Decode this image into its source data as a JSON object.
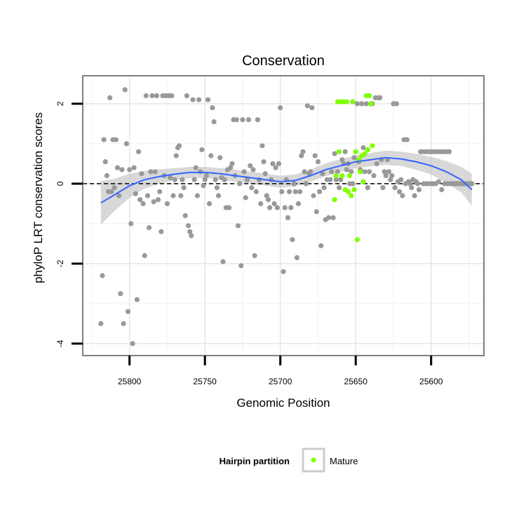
{
  "chart_data": {
    "type": "scatter",
    "title": "Conservation",
    "xlabel": "Genomic Position",
    "ylabel": "phyloP LRT conservation scores",
    "x_reversed": true,
    "xlim": [
      25831,
      25565
    ],
    "ylim": [
      -4.3,
      2.7
    ],
    "x_ticks": [
      25800,
      25750,
      25700,
      25650,
      25600
    ],
    "y_ticks": [
      2,
      0,
      -2,
      -4
    ],
    "grid": true,
    "reference_line": {
      "y": 0,
      "style": "dashed"
    },
    "colors": {
      "other": "#999999",
      "mature": "#7fff00",
      "smooth": "#3366ff",
      "ribbon": "#bebebe",
      "panel_border": "#7f7f7f"
    },
    "legend": {
      "title": "Hairpin partition",
      "entries": [
        "Mature"
      ],
      "placement": "bottom"
    },
    "series": [
      {
        "points": [
          [
            25819,
            -3.5
          ],
          [
            25818,
            -2.3
          ],
          [
            25817,
            1.1
          ],
          [
            25816,
            0.55
          ],
          [
            25815,
            0.2
          ],
          [
            25814,
            -0.2
          ],
          [
            25813,
            2.15
          ],
          [
            25812,
            -0.2
          ],
          [
            25811,
            1.1
          ],
          [
            25810,
            -0.1
          ],
          [
            25809,
            1.1
          ],
          [
            25808,
            0.4
          ],
          [
            25807,
            -0.3
          ],
          [
            25806,
            -2.75
          ],
          [
            25805,
            0.35
          ],
          [
            25804,
            -3.5
          ],
          [
            25803,
            2.35
          ],
          [
            25802,
            1.0
          ],
          [
            25801,
            -3.2
          ],
          [
            25800,
            0.35
          ],
          [
            25799,
            -1.0
          ],
          [
            25798,
            -4.0
          ],
          [
            25797,
            0.4
          ],
          [
            25796,
            -0.25
          ],
          [
            25795,
            -2.9
          ],
          [
            25794,
            0.8
          ],
          [
            25793,
            -0.4
          ],
          [
            25792,
            0.25
          ],
          [
            25791,
            -0.5
          ],
          [
            25790,
            -1.8
          ],
          [
            25789,
            2.2
          ],
          [
            25788,
            -0.3
          ],
          [
            25787,
            -1.1
          ],
          [
            25786,
            0.3
          ],
          [
            25785,
            2.2
          ],
          [
            25784,
            -0.45
          ],
          [
            25783,
            0.3
          ],
          [
            25782,
            2.2
          ],
          [
            25781,
            -0.4
          ],
          [
            25780,
            -0.2
          ],
          [
            25779,
            -1.2
          ],
          [
            25778,
            2.2
          ],
          [
            25777,
            0.2
          ],
          [
            25776,
            2.2
          ],
          [
            25775,
            -0.5
          ],
          [
            25774,
            2.2
          ],
          [
            25773,
            0.15
          ],
          [
            25772,
            2.2
          ],
          [
            25771,
            -0.3
          ],
          [
            25770,
            0.1
          ],
          [
            25769,
            0.7
          ],
          [
            25768,
            0.9
          ],
          [
            25767,
            0.95
          ],
          [
            25766,
            -0.3
          ],
          [
            25765,
            0.1
          ],
          [
            25764,
            -0.1
          ],
          [
            25763,
            -0.8
          ],
          [
            25762,
            2.2
          ],
          [
            25761,
            -1.05
          ],
          [
            25760,
            -1.2
          ],
          [
            25759,
            -1.3
          ],
          [
            25758,
            2.1
          ],
          [
            25757,
            0.1
          ],
          [
            25756,
            0.4
          ],
          [
            25755,
            -0.3
          ],
          [
            25754,
            2.1
          ],
          [
            25753,
            0.3
          ],
          [
            25752,
            0.85
          ],
          [
            25751,
            -0.05
          ],
          [
            25750,
            0.1
          ],
          [
            25749,
            0.2
          ],
          [
            25748,
            2.1
          ],
          [
            25747,
            -0.5
          ],
          [
            25746,
            0.7
          ],
          [
            25745,
            1.9
          ],
          [
            25744,
            1.55
          ],
          [
            25743,
            0.1
          ],
          [
            25742,
            -0.1
          ],
          [
            25741,
            -0.3
          ],
          [
            25740,
            0.65
          ],
          [
            25739,
            0.15
          ],
          [
            25738,
            -1.95
          ],
          [
            25737,
            0.1
          ],
          [
            25736,
            -0.6
          ],
          [
            25735,
            0.35
          ],
          [
            25734,
            -0.6
          ],
          [
            25733,
            0.4
          ],
          [
            25732,
            0.5
          ],
          [
            25731,
            1.6
          ],
          [
            25730,
            0.2
          ],
          [
            25729,
            1.6
          ],
          [
            25728,
            -1.05
          ],
          [
            25727,
            0.0
          ],
          [
            25726,
            -2.05
          ],
          [
            25725,
            1.6
          ],
          [
            25724,
            0.3
          ],
          [
            25723,
            -0.35
          ],
          [
            25722,
            0.1
          ],
          [
            25721,
            1.6
          ],
          [
            25720,
            0.45
          ],
          [
            25719,
            -0.1
          ],
          [
            25718,
            0.35
          ],
          [
            25717,
            -1.8
          ],
          [
            25716,
            -0.2
          ],
          [
            25715,
            1.6
          ],
          [
            25714,
            0.1
          ],
          [
            25713,
            -0.5
          ],
          [
            25712,
            0.95
          ],
          [
            25711,
            0.55
          ],
          [
            25710,
            0.25
          ],
          [
            25709,
            -0.3
          ],
          [
            25708,
            -0.4
          ],
          [
            25707,
            -0.6
          ],
          [
            25706,
            0.1
          ],
          [
            25705,
            0.5
          ],
          [
            25704,
            -0.5
          ],
          [
            25703,
            0.4
          ],
          [
            25702,
            -0.6
          ],
          [
            25701,
            0.5
          ],
          [
            25700,
            1.9
          ],
          [
            25699,
            -0.2
          ],
          [
            25698,
            -2.2
          ],
          [
            25697,
            -0.6
          ],
          [
            25696,
            0.1
          ],
          [
            25695,
            -0.85
          ],
          [
            25694,
            -0.2
          ],
          [
            25693,
            -0.6
          ],
          [
            25692,
            -1.4
          ],
          [
            25691,
            0.0
          ],
          [
            25690,
            -0.2
          ],
          [
            25689,
            -1.85
          ],
          [
            25688,
            -0.5
          ],
          [
            25687,
            -0.2
          ],
          [
            25686,
            0.7
          ],
          [
            25685,
            0.8
          ],
          [
            25684,
            0.3
          ],
          [
            25683,
            0.0
          ],
          [
            25682,
            1.95
          ],
          [
            25681,
            0.25
          ],
          [
            25680,
            0.3
          ],
          [
            25679,
            1.9
          ],
          [
            25678,
            -0.3
          ],
          [
            25677,
            0.7
          ],
          [
            25676,
            -0.7
          ],
          [
            25675,
            0.55
          ],
          [
            25674,
            -0.2
          ],
          [
            25673,
            -1.55
          ],
          [
            25672,
            0.25
          ],
          [
            25671,
            -0.1
          ],
          [
            25670,
            -0.9
          ],
          [
            25669,
            0.1
          ],
          [
            25668,
            -0.85
          ],
          [
            25667,
            0.1
          ],
          [
            25666,
            0.3
          ],
          [
            25665,
            -0.85
          ],
          [
            25664,
            0.75
          ],
          [
            25663,
            0.1
          ],
          [
            25662,
            0.3
          ],
          [
            25661,
            -0.1
          ],
          [
            25660,
            0.1
          ],
          [
            25659,
            0.6
          ],
          [
            25658,
            0.5
          ],
          [
            25657,
            0.8
          ],
          [
            25656,
            0.35
          ],
          [
            25655,
            0.5
          ],
          [
            25654,
            0.0
          ],
          [
            25653,
            0.3
          ],
          [
            25652,
            0.0
          ],
          [
            25651,
            0.65
          ],
          [
            25650,
            0.8
          ],
          [
            25649,
            2.0
          ],
          [
            25648,
            0.55
          ],
          [
            25647,
            0.35
          ],
          [
            25646,
            2.0
          ],
          [
            25645,
            0.9
          ],
          [
            25644,
            0.3
          ],
          [
            25643,
            2.0
          ],
          [
            25642,
            -0.1
          ],
          [
            25641,
            0.3
          ],
          [
            25640,
            2.0
          ],
          [
            25639,
            2.0
          ],
          [
            25638,
            0.2
          ],
          [
            25637,
            2.15
          ],
          [
            25636,
            0.5
          ],
          [
            25635,
            2.15
          ],
          [
            25634,
            2.15
          ],
          [
            25633,
            0.6
          ],
          [
            25632,
            -0.1
          ],
          [
            25631,
            0.3
          ],
          [
            25630,
            0.2
          ],
          [
            25629,
            0.6
          ],
          [
            25628,
            0.3
          ],
          [
            25627,
            0.1
          ],
          [
            25626,
            0.2
          ],
          [
            25625,
            2.0
          ],
          [
            25624,
            -0.1
          ],
          [
            25623,
            2.0
          ],
          [
            25622,
            0.05
          ],
          [
            25621,
            -0.2
          ],
          [
            25620,
            0.1
          ],
          [
            25619,
            -0.3
          ],
          [
            25618,
            1.1
          ],
          [
            25617,
            0.0
          ],
          [
            25616,
            1.1
          ],
          [
            25615,
            0.05
          ],
          [
            25614,
            0.0
          ],
          [
            25613,
            -0.1
          ],
          [
            25612,
            0.1
          ],
          [
            25611,
            -0.3
          ],
          [
            25610,
            0.05
          ],
          [
            25609,
            0.0
          ],
          [
            25608,
            -0.15
          ],
          [
            25607,
            0.8
          ],
          [
            25606,
            0.8
          ],
          [
            25605,
            0.0
          ],
          [
            25604,
            0.8
          ],
          [
            25603,
            0.0
          ],
          [
            25602,
            0.8
          ],
          [
            25601,
            0.0
          ],
          [
            25600,
            0.8
          ],
          [
            25599,
            0.0
          ],
          [
            25598,
            0.8
          ],
          [
            25597,
            0.0
          ],
          [
            25596,
            0.8
          ],
          [
            25595,
            0.05
          ],
          [
            25594,
            0.8
          ],
          [
            25593,
            -0.15
          ],
          [
            25592,
            0.8
          ],
          [
            25591,
            0.0
          ],
          [
            25590,
            0.8
          ],
          [
            25589,
            0.0
          ],
          [
            25588,
            0.8
          ],
          [
            25587,
            0.0
          ],
          [
            25586,
            0.0
          ],
          [
            25585,
            0.0
          ],
          [
            25584,
            0.0
          ],
          [
            25583,
            0.0
          ],
          [
            25582,
            0.0
          ],
          [
            25581,
            0.0
          ],
          [
            25580,
            0.0
          ],
          [
            25579,
            0.0
          ],
          [
            25578,
            0.0
          ],
          [
            25577,
            0.0
          ],
          [
            25576,
            0.0
          ],
          [
            25575,
            0.0
          ],
          [
            25574,
            0.0
          ],
          [
            25573,
            0.0
          ]
        ]
      },
      {
        "name": "Mature",
        "points": [
          [
            25664,
            -0.4
          ],
          [
            25663,
            0.2
          ],
          [
            25662,
            2.05
          ],
          [
            25661,
            0.8
          ],
          [
            25660,
            2.05
          ],
          [
            25659,
            0.2
          ],
          [
            25658,
            2.05
          ],
          [
            25657,
            -0.15
          ],
          [
            25656,
            2.05
          ],
          [
            25655,
            -0.2
          ],
          [
            25654,
            0.2
          ],
          [
            25653,
            -0.3
          ],
          [
            25652,
            2.05
          ],
          [
            25651,
            -0.15
          ],
          [
            25650,
            0.8
          ],
          [
            25649,
            -1.4
          ],
          [
            25648,
            0.6
          ],
          [
            25647,
            0.3
          ],
          [
            25646,
            0.7
          ],
          [
            25645,
            0.05
          ],
          [
            25644,
            0.75
          ],
          [
            25643,
            2.2
          ],
          [
            25642,
            0.85
          ],
          [
            25641,
            2.2
          ],
          [
            25640,
            2.0
          ],
          [
            25639,
            0.95
          ]
        ]
      }
    ],
    "smooth": [
      [
        25819,
        -0.48,
        0.55
      ],
      [
        25810,
        -0.28,
        0.4
      ],
      [
        25800,
        -0.05,
        0.3
      ],
      [
        25790,
        0.1,
        0.22
      ],
      [
        25780,
        0.18,
        0.18
      ],
      [
        25770,
        0.24,
        0.15
      ],
      [
        25760,
        0.28,
        0.14
      ],
      [
        25750,
        0.28,
        0.14
      ],
      [
        25740,
        0.25,
        0.14
      ],
      [
        25730,
        0.2,
        0.15
      ],
      [
        25720,
        0.15,
        0.15
      ],
      [
        25710,
        0.1,
        0.15
      ],
      [
        25700,
        0.05,
        0.15
      ],
      [
        25690,
        0.08,
        0.15
      ],
      [
        25680,
        0.2,
        0.15
      ],
      [
        25670,
        0.35,
        0.16
      ],
      [
        25660,
        0.45,
        0.16
      ],
      [
        25650,
        0.55,
        0.16
      ],
      [
        25640,
        0.6,
        0.17
      ],
      [
        25630,
        0.65,
        0.18
      ],
      [
        25620,
        0.62,
        0.18
      ],
      [
        25610,
        0.55,
        0.2
      ],
      [
        25600,
        0.45,
        0.22
      ],
      [
        25590,
        0.3,
        0.27
      ],
      [
        25580,
        0.1,
        0.32
      ],
      [
        25573,
        -0.15,
        0.4
      ]
    ]
  }
}
